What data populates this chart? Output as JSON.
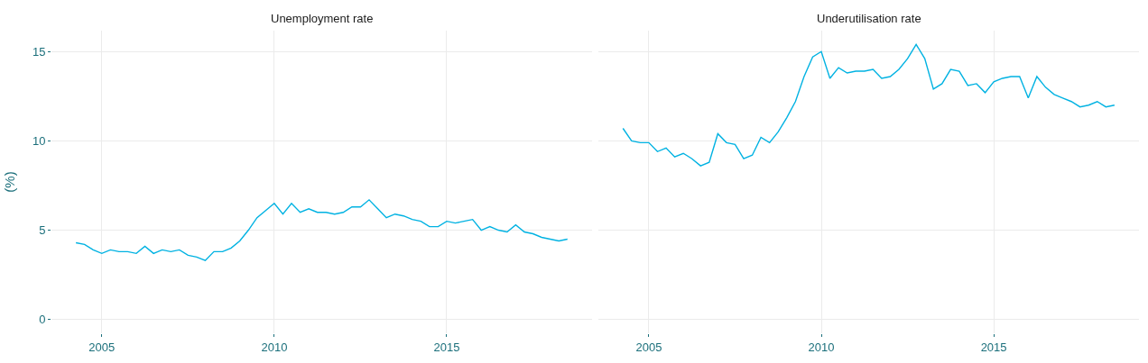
{
  "chart_data": [
    {
      "type": "line",
      "title": "Unemployment rate",
      "ylabel": "(%)",
      "color": "#00b2e2",
      "grid": true,
      "x": [
        2004.25,
        2004.5,
        2004.75,
        2005,
        2005.25,
        2005.5,
        2005.75,
        2006,
        2006.25,
        2006.5,
        2006.75,
        2007,
        2007.25,
        2007.5,
        2007.75,
        2008,
        2008.25,
        2008.5,
        2008.75,
        2009,
        2009.25,
        2009.5,
        2009.75,
        2010,
        2010.25,
        2010.5,
        2010.75,
        2011,
        2011.25,
        2011.5,
        2011.75,
        2012,
        2012.25,
        2012.5,
        2012.75,
        2013,
        2013.25,
        2013.5,
        2013.75,
        2014,
        2014.25,
        2014.5,
        2014.75,
        2015,
        2015.25,
        2015.5,
        2015.75,
        2016,
        2016.25,
        2016.5,
        2016.75,
        2017,
        2017.25,
        2017.5,
        2017.75,
        2018,
        2018.25,
        2018.5
      ],
      "values": [
        4.3,
        4.2,
        3.9,
        3.7,
        3.9,
        3.8,
        3.8,
        3.7,
        4.1,
        3.7,
        3.9,
        3.8,
        3.9,
        3.6,
        3.5,
        3.3,
        3.8,
        3.8,
        4.0,
        4.4,
        5.0,
        5.7,
        6.1,
        6.5,
        5.9,
        6.5,
        6.0,
        6.2,
        6.0,
        6.0,
        5.9,
        6.0,
        6.3,
        6.3,
        6.7,
        6.2,
        5.7,
        5.9,
        5.8,
        5.6,
        5.5,
        5.2,
        5.2,
        5.5,
        5.4,
        5.5,
        5.6,
        5.0,
        5.2,
        5.0,
        4.9,
        5.3,
        4.9,
        4.8,
        4.6,
        4.5,
        4.4,
        4.5
      ],
      "xlim": [
        2003.54,
        2019.21
      ],
      "xticks": [
        2005,
        2010,
        2015
      ],
      "ylim": [
        -0.77,
        16.17
      ],
      "yticks": [
        0,
        5,
        10,
        15
      ]
    },
    {
      "type": "line",
      "title": "Underutilisation rate",
      "color": "#00b2e2",
      "grid": true,
      "tick_labels": "x",
      "x": [
        2004.25,
        2004.5,
        2004.75,
        2005,
        2005.25,
        2005.5,
        2005.75,
        2006,
        2006.25,
        2006.5,
        2006.75,
        2007,
        2007.25,
        2007.5,
        2007.75,
        2008,
        2008.25,
        2008.5,
        2008.75,
        2009,
        2009.25,
        2009.5,
        2009.75,
        2010,
        2010.25,
        2010.5,
        2010.75,
        2011,
        2011.25,
        2011.5,
        2011.75,
        2012,
        2012.25,
        2012.5,
        2012.75,
        2013,
        2013.25,
        2013.5,
        2013.75,
        2014,
        2014.25,
        2014.5,
        2014.75,
        2015,
        2015.25,
        2015.5,
        2015.75,
        2016,
        2016.25,
        2016.5,
        2016.75,
        2017,
        2017.25,
        2017.5,
        2017.75,
        2018,
        2018.25,
        2018.5
      ],
      "values": [
        10.7,
        10.0,
        9.9,
        9.9,
        9.4,
        9.6,
        9.1,
        9.3,
        9.0,
        8.6,
        8.8,
        10.4,
        9.9,
        9.8,
        9.0,
        9.2,
        10.2,
        9.9,
        10.5,
        11.3,
        12.2,
        13.6,
        14.7,
        15.0,
        13.5,
        14.1,
        13.8,
        13.9,
        13.9,
        14.0,
        13.5,
        13.6,
        14.0,
        14.6,
        15.4,
        14.6,
        12.9,
        13.2,
        14.0,
        13.9,
        13.1,
        13.2,
        12.7,
        13.3,
        13.5,
        13.6,
        13.6,
        12.4,
        13.6,
        13.0,
        12.6,
        12.4,
        12.2,
        11.9,
        12.0,
        12.2,
        11.9,
        12.0
      ],
      "xlim": [
        2003.54,
        2019.21
      ],
      "xticks": [
        2005,
        2010,
        2015
      ],
      "ylim": [
        -0.77,
        16.17
      ],
      "yticks": [
        0,
        5,
        10,
        15
      ]
    }
  ]
}
